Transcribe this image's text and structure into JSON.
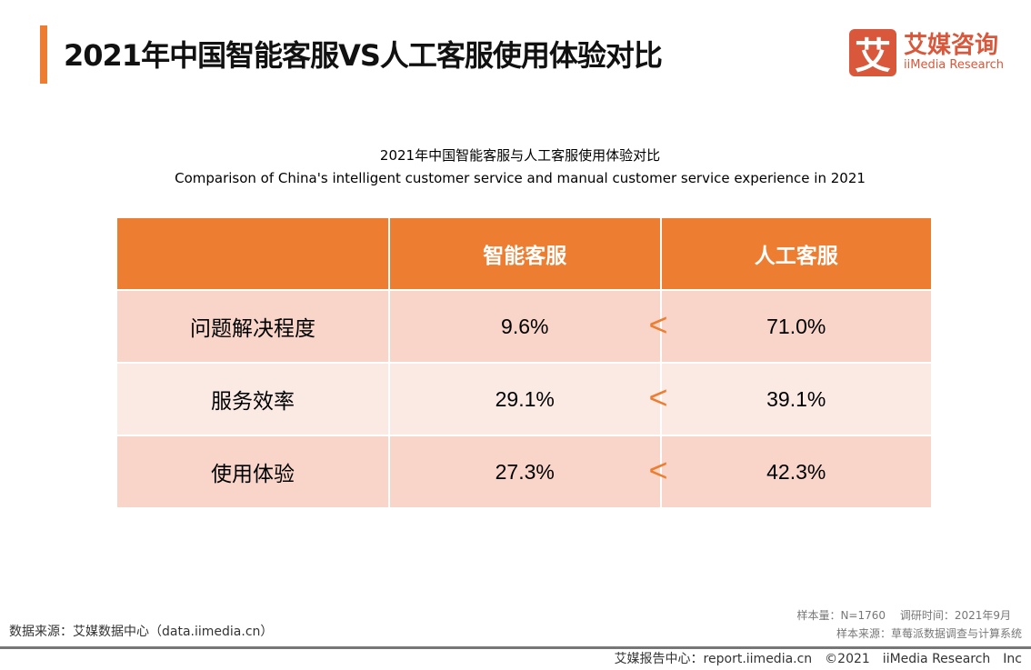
{
  "header": {
    "title": "2021年中国智能客服VS人工客服使用体验对比",
    "logo_mark": "艾",
    "logo_cn": "艾媒咨询",
    "logo_en": "iiMedia Research",
    "accent": "#ED7D31"
  },
  "chart_data": {
    "type": "table",
    "title": "2021年中国智能客服与人工客服使用体验对比",
    "subtitle": "Comparison of China's intelligent customer service and manual customer service experience in 2021",
    "columns": [
      "",
      "智能客服",
      "人工客服"
    ],
    "comparator": "<",
    "rows": [
      {
        "label": "问题解决程度",
        "values": [
          "9.6%",
          "71.0%"
        ]
      },
      {
        "label": "服务效率",
        "values": [
          "29.1%",
          "39.1%"
        ]
      },
      {
        "label": "使用体验",
        "values": [
          "27.3%",
          "42.3%"
        ]
      }
    ]
  },
  "footer": {
    "source": "数据来源：艾媒数据中心（data.iimedia.cn）",
    "sample": "样本量：N=1760　 调研时间：2021年9月",
    "sample_source": "样本来源：草莓派数据调查与计算系统",
    "report": "艾媒报告中心：report.iimedia.cn　©2021　iiMedia Research　Inc"
  }
}
